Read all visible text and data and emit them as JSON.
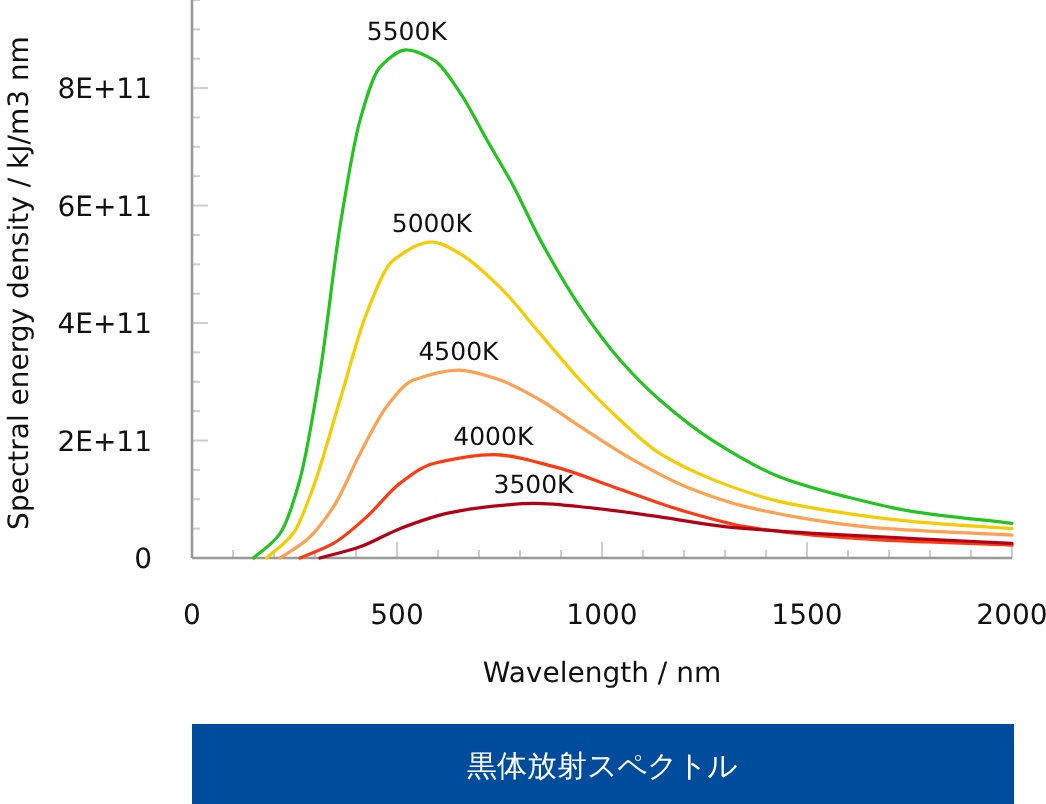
{
  "chart_data": {
    "type": "line",
    "title": "黒体放射スペクトル",
    "xlabel": "Wavelength / nm",
    "ylabel": "Spectral energy density / kJ/m3 nm",
    "xlim": [
      0,
      2000
    ],
    "ylim": [
      0,
      950000000000.0
    ],
    "xticks": [
      0,
      500,
      1000,
      1500,
      2000
    ],
    "yticks": [
      0,
      {
        "value": 200000000000.0,
        "label": "2E+11"
      },
      {
        "value": 400000000000.0,
        "label": "4E+11"
      },
      {
        "value": 600000000000.0,
        "label": "6E+11"
      },
      {
        "value": 800000000000.0,
        "label": "8E+11"
      }
    ],
    "series": [
      {
        "name": "5500K",
        "color": "#22c41e",
        "x": [
          150,
          215,
          263,
          312,
          361,
          410,
          459,
          524,
          589,
          654,
          719,
          784,
          849,
          946,
          1044,
          1141,
          1272,
          1434,
          1597,
          1759,
          2000
        ],
        "values": [
          0,
          42000000000.0,
          133000000000.0,
          314000000000.0,
          564000000000.0,
          746000000000.0,
          836000000000.0,
          865000000000.0,
          848000000000.0,
          792000000000.0,
          712000000000.0,
          633000000000.0,
          542000000000.0,
          428000000000.0,
          337000000000.0,
          269000000000.0,
          199000000000.0,
          138000000000.0,
          104000000000.0,
          79000000000.0,
          59000000000.0
        ]
      },
      {
        "name": "5000K",
        "color": "#f5cc00",
        "x": [
          182,
          247,
          296,
          361,
          426,
          491,
          585,
          654,
          751,
          849,
          946,
          1044,
          1141,
          1272,
          1434,
          1597,
          1759,
          2000
        ],
        "values": [
          0,
          42000000000.0,
          121000000000.0,
          269000000000.0,
          417000000000.0,
          507000000000.0,
          538000000000.0,
          518000000000.0,
          461000000000.0,
          382000000000.0,
          303000000000.0,
          235000000000.0,
          178000000000.0,
          133000000000.0,
          96000000000.0,
          76000000000.0,
          62000000000.0,
          50000000000.0
        ]
      },
      {
        "name": "4500K",
        "color": "#ffa050",
        "x": [
          215,
          280,
          345,
          410,
          475,
          540,
          650,
          751,
          849,
          946,
          1076,
          1206,
          1353,
          1515,
          1678,
          2000
        ],
        "values": [
          0,
          31000000000.0,
          87000000000.0,
          178000000000.0,
          258000000000.0,
          303000000000.0,
          320000000000.0,
          303000000000.0,
          269000000000.0,
          224000000000.0,
          167000000000.0,
          121000000000.0,
          87000000000.0,
          65000000000.0,
          51000000000.0,
          39000000000.0
        ]
      },
      {
        "name": "4000K",
        "color": "#ff3a12",
        "x": [
          263,
          345,
          426,
          507,
          589,
          735,
          881,
          1028,
          1190,
          1353,
          1515,
          1678,
          2000
        ],
        "values": [
          0,
          25000000000.0,
          70000000000.0,
          127000000000.0,
          161000000000.0,
          176000000000.0,
          156000000000.0,
          121000000000.0,
          82000000000.0,
          53000000000.0,
          39000000000.0,
          31000000000.0,
          22000000000.0
        ]
      },
      {
        "name": "3500K",
        "color": "#b40014",
        "x": [
          312,
          410,
          507,
          621,
          719,
          833,
          979,
          1141,
          1304,
          1515,
          1759,
          2000
        ],
        "values": [
          0,
          19000000000.0,
          50000000000.0,
          76000000000.0,
          87000000000.0,
          93000000000.0,
          85000000000.0,
          70000000000.0,
          53000000000.0,
          42000000000.0,
          33000000000.0,
          25000000000.0
        ]
      }
    ]
  }
}
